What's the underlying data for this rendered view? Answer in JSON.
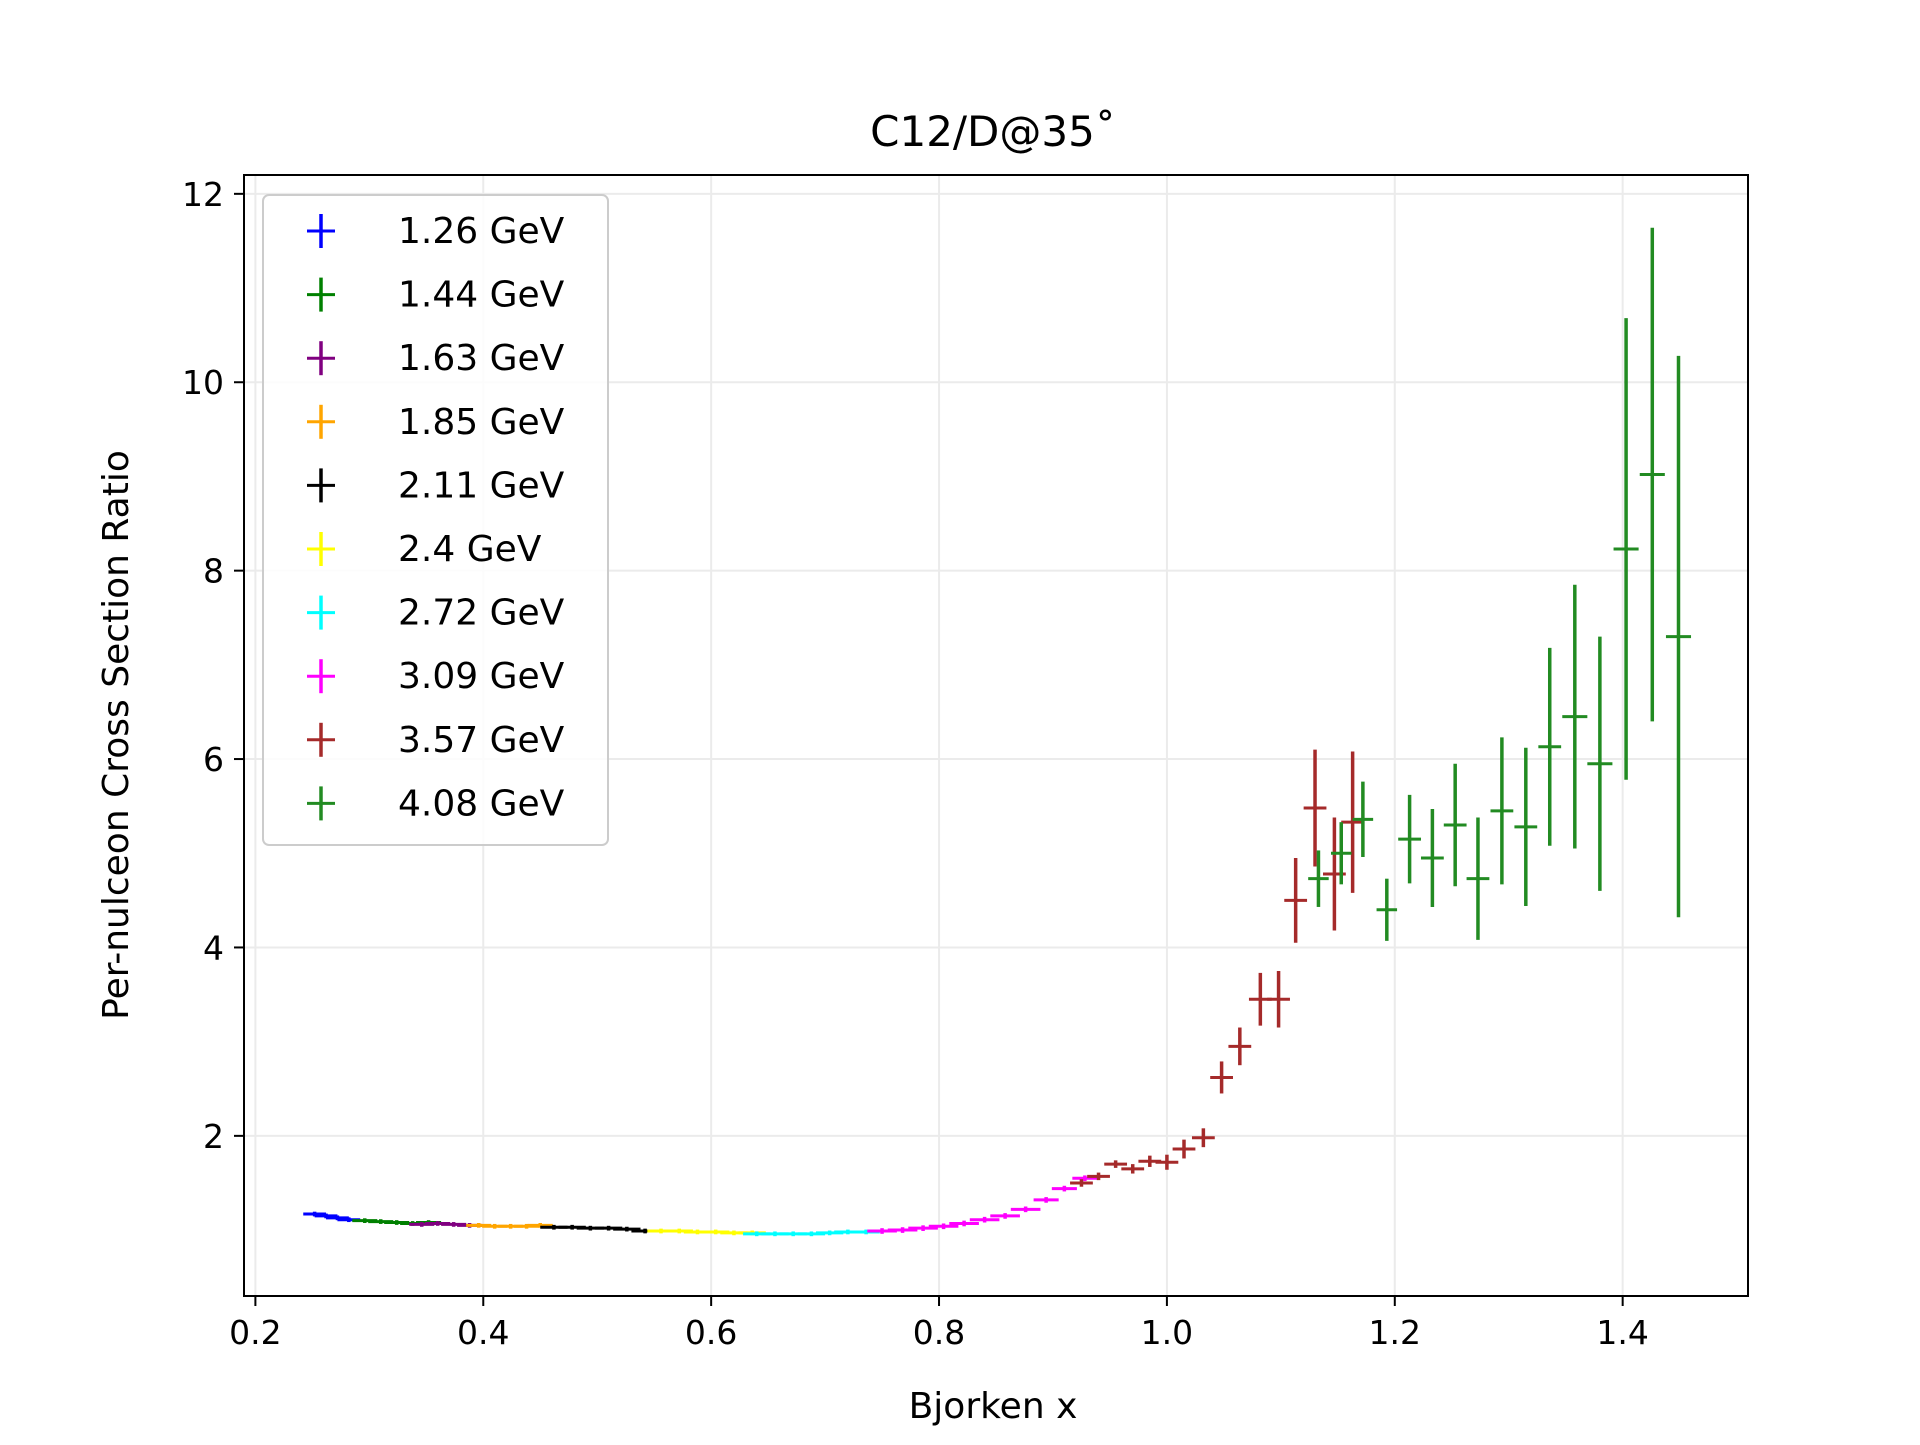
{
  "chart_data": {
    "type": "scatter",
    "title": "C12/D@35˚",
    "xlabel": "Bjorken x",
    "ylabel": "Per-nulceon Cross Section Ratio",
    "xlim": [
      0.19,
      1.51
    ],
    "ylim": [
      0.3,
      12.2
    ],
    "xticks": [
      0.2,
      0.4,
      0.6,
      0.8,
      1.0,
      1.2,
      1.4
    ],
    "xtick_labels": [
      "0.2",
      "0.4",
      "0.6",
      "0.8",
      "1.0",
      "1.2",
      "1.4"
    ],
    "yticks": [
      2,
      4,
      6,
      8,
      10,
      12
    ],
    "ytick_labels": [
      "2",
      "4",
      "6",
      "8",
      "10",
      "12"
    ],
    "grid": true,
    "legend_position": "top-left",
    "series": [
      {
        "name": "1.26 GeV",
        "color": "#0000ff",
        "points": [
          {
            "x": 0.252,
            "y": 1.17,
            "xerr": 0.01,
            "yerr": 0.025
          },
          {
            "x": 0.262,
            "y": 1.15,
            "xerr": 0.01,
            "yerr": 0.025
          },
          {
            "x": 0.272,
            "y": 1.13,
            "xerr": 0.01,
            "yerr": 0.025
          },
          {
            "x": 0.282,
            "y": 1.11,
            "xerr": 0.01,
            "yerr": 0.025
          }
        ]
      },
      {
        "name": "1.44 GeV",
        "color": "#008000",
        "points": [
          {
            "x": 0.296,
            "y": 1.1,
            "xerr": 0.011,
            "yerr": 0.025
          },
          {
            "x": 0.31,
            "y": 1.09,
            "xerr": 0.011,
            "yerr": 0.025
          },
          {
            "x": 0.324,
            "y": 1.08,
            "xerr": 0.011,
            "yerr": 0.025
          },
          {
            "x": 0.338,
            "y": 1.07,
            "xerr": 0.011,
            "yerr": 0.025
          },
          {
            "x": 0.352,
            "y": 1.08,
            "xerr": 0.011,
            "yerr": 0.025
          }
        ]
      },
      {
        "name": "1.63 GeV",
        "color": "#800080",
        "points": [
          {
            "x": 0.346,
            "y": 1.06,
            "xerr": 0.011,
            "yerr": 0.025
          },
          {
            "x": 0.36,
            "y": 1.07,
            "xerr": 0.011,
            "yerr": 0.025
          },
          {
            "x": 0.374,
            "y": 1.06,
            "xerr": 0.011,
            "yerr": 0.025
          },
          {
            "x": 0.388,
            "y": 1.05,
            "xerr": 0.011,
            "yerr": 0.025
          }
        ]
      },
      {
        "name": "1.85 GeV",
        "color": "#ffa500",
        "points": [
          {
            "x": 0.396,
            "y": 1.05,
            "xerr": 0.011,
            "yerr": 0.025
          },
          {
            "x": 0.41,
            "y": 1.04,
            "xerr": 0.011,
            "yerr": 0.025
          },
          {
            "x": 0.424,
            "y": 1.04,
            "xerr": 0.011,
            "yerr": 0.025
          },
          {
            "x": 0.438,
            "y": 1.04,
            "xerr": 0.011,
            "yerr": 0.025
          },
          {
            "x": 0.45,
            "y": 1.05,
            "xerr": 0.011,
            "yerr": 0.025
          }
        ]
      },
      {
        "name": "2.11 GeV",
        "color": "#000000",
        "points": [
          {
            "x": 0.462,
            "y": 1.03,
            "xerr": 0.012,
            "yerr": 0.025
          },
          {
            "x": 0.478,
            "y": 1.03,
            "xerr": 0.012,
            "yerr": 0.025
          },
          {
            "x": 0.494,
            "y": 1.02,
            "xerr": 0.012,
            "yerr": 0.025
          },
          {
            "x": 0.51,
            "y": 1.02,
            "xerr": 0.012,
            "yerr": 0.025
          },
          {
            "x": 0.526,
            "y": 1.01,
            "xerr": 0.012,
            "yerr": 0.025
          },
          {
            "x": 0.542,
            "y": 0.99,
            "xerr": 0.012,
            "yerr": 0.025
          }
        ]
      },
      {
        "name": "2.4 GeV",
        "color": "#ffff00",
        "points": [
          {
            "x": 0.556,
            "y": 0.99,
            "xerr": 0.012,
            "yerr": 0.025
          },
          {
            "x": 0.572,
            "y": 0.99,
            "xerr": 0.012,
            "yerr": 0.025
          },
          {
            "x": 0.588,
            "y": 0.98,
            "xerr": 0.012,
            "yerr": 0.025
          },
          {
            "x": 0.604,
            "y": 0.98,
            "xerr": 0.012,
            "yerr": 0.025
          },
          {
            "x": 0.62,
            "y": 0.97,
            "xerr": 0.012,
            "yerr": 0.025
          },
          {
            "x": 0.636,
            "y": 0.97,
            "xerr": 0.012,
            "yerr": 0.025
          }
        ]
      },
      {
        "name": "2.72 GeV",
        "color": "#00ffff",
        "points": [
          {
            "x": 0.64,
            "y": 0.96,
            "xerr": 0.012,
            "yerr": 0.025
          },
          {
            "x": 0.656,
            "y": 0.96,
            "xerr": 0.012,
            "yerr": 0.025
          },
          {
            "x": 0.672,
            "y": 0.96,
            "xerr": 0.012,
            "yerr": 0.025
          },
          {
            "x": 0.688,
            "y": 0.96,
            "xerr": 0.012,
            "yerr": 0.025
          },
          {
            "x": 0.704,
            "y": 0.97,
            "xerr": 0.012,
            "yerr": 0.025
          },
          {
            "x": 0.72,
            "y": 0.98,
            "xerr": 0.012,
            "yerr": 0.025
          },
          {
            "x": 0.736,
            "y": 0.98,
            "xerr": 0.012,
            "yerr": 0.025
          }
        ]
      },
      {
        "name": "3.09 GeV",
        "color": "#ff00ff",
        "points": [
          {
            "x": 0.75,
            "y": 0.99,
            "xerr": 0.013,
            "yerr": 0.03
          },
          {
            "x": 0.768,
            "y": 1.0,
            "xerr": 0.013,
            "yerr": 0.03
          },
          {
            "x": 0.786,
            "y": 1.02,
            "xerr": 0.013,
            "yerr": 0.03
          },
          {
            "x": 0.804,
            "y": 1.04,
            "xerr": 0.013,
            "yerr": 0.03
          },
          {
            "x": 0.822,
            "y": 1.07,
            "xerr": 0.013,
            "yerr": 0.03
          },
          {
            "x": 0.84,
            "y": 1.11,
            "xerr": 0.013,
            "yerr": 0.03
          },
          {
            "x": 0.858,
            "y": 1.15,
            "xerr": 0.013,
            "yerr": 0.03
          },
          {
            "x": 0.876,
            "y": 1.22,
            "xerr": 0.013,
            "yerr": 0.03
          },
          {
            "x": 0.894,
            "y": 1.32,
            "xerr": 0.011,
            "yerr": 0.03
          },
          {
            "x": 0.91,
            "y": 1.44,
            "xerr": 0.011,
            "yerr": 0.03
          },
          {
            "x": 0.928,
            "y": 1.55,
            "xerr": 0.011,
            "yerr": 0.03
          }
        ]
      },
      {
        "name": "3.57 GeV",
        "color": "#a52a2a",
        "points": [
          {
            "x": 0.925,
            "y": 1.5,
            "xerr": 0.01,
            "yerr": 0.04
          },
          {
            "x": 0.94,
            "y": 1.57,
            "xerr": 0.01,
            "yerr": 0.04
          },
          {
            "x": 0.955,
            "y": 1.7,
            "xerr": 0.01,
            "yerr": 0.04
          },
          {
            "x": 0.97,
            "y": 1.65,
            "xerr": 0.01,
            "yerr": 0.05
          },
          {
            "x": 0.985,
            "y": 1.73,
            "xerr": 0.01,
            "yerr": 0.06
          },
          {
            "x": 1.0,
            "y": 1.72,
            "xerr": 0.01,
            "yerr": 0.08
          },
          {
            "x": 1.015,
            "y": 1.86,
            "xerr": 0.01,
            "yerr": 0.1
          },
          {
            "x": 1.032,
            "y": 1.98,
            "xerr": 0.01,
            "yerr": 0.1
          },
          {
            "x": 1.048,
            "y": 2.62,
            "xerr": 0.01,
            "yerr": 0.17
          },
          {
            "x": 1.064,
            "y": 2.95,
            "xerr": 0.01,
            "yerr": 0.2
          },
          {
            "x": 1.082,
            "y": 3.45,
            "xerr": 0.01,
            "yerr": 0.28
          },
          {
            "x": 1.098,
            "y": 3.45,
            "xerr": 0.01,
            "yerr": 0.3
          },
          {
            "x": 1.113,
            "y": 4.5,
            "xerr": 0.01,
            "yerr": 0.45
          },
          {
            "x": 1.13,
            "y": 5.48,
            "xerr": 0.01,
            "yerr": 0.62
          },
          {
            "x": 1.147,
            "y": 4.78,
            "xerr": 0.01,
            "yerr": 0.6
          },
          {
            "x": 1.163,
            "y": 5.33,
            "xerr": 0.01,
            "yerr": 0.75
          }
        ]
      },
      {
        "name": "4.08 GeV",
        "color": "#228b22",
        "points": [
          {
            "x": 1.133,
            "y": 4.73,
            "xerr": 0.009,
            "yerr": 0.3
          },
          {
            "x": 1.153,
            "y": 5.0,
            "xerr": 0.009,
            "yerr": 0.33
          },
          {
            "x": 1.172,
            "y": 5.36,
            "xerr": 0.009,
            "yerr": 0.4
          },
          {
            "x": 1.193,
            "y": 4.4,
            "xerr": 0.009,
            "yerr": 0.33
          },
          {
            "x": 1.213,
            "y": 5.15,
            "xerr": 0.01,
            "yerr": 0.47
          },
          {
            "x": 1.233,
            "y": 4.95,
            "xerr": 0.01,
            "yerr": 0.52
          },
          {
            "x": 1.253,
            "y": 5.3,
            "xerr": 0.01,
            "yerr": 0.65
          },
          {
            "x": 1.273,
            "y": 4.73,
            "xerr": 0.01,
            "yerr": 0.65
          },
          {
            "x": 1.294,
            "y": 5.45,
            "xerr": 0.01,
            "yerr": 0.78
          },
          {
            "x": 1.315,
            "y": 5.28,
            "xerr": 0.01,
            "yerr": 0.84
          },
          {
            "x": 1.336,
            "y": 6.13,
            "xerr": 0.01,
            "yerr": 1.05
          },
          {
            "x": 1.358,
            "y": 6.45,
            "xerr": 0.011,
            "yerr": 1.4
          },
          {
            "x": 1.38,
            "y": 5.95,
            "xerr": 0.011,
            "yerr": 1.35
          },
          {
            "x": 1.403,
            "y": 8.23,
            "xerr": 0.011,
            "yerr": 2.45
          },
          {
            "x": 1.426,
            "y": 9.02,
            "xerr": 0.011,
            "yerr": 2.62
          },
          {
            "x": 1.449,
            "y": 7.3,
            "xerr": 0.011,
            "yerr": 2.98
          }
        ]
      }
    ]
  }
}
